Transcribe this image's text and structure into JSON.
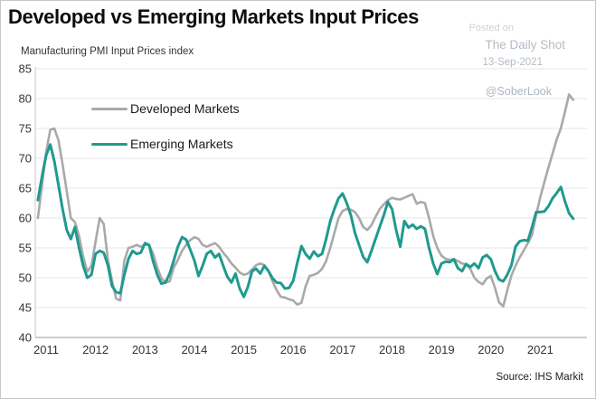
{
  "page": {
    "title": "Developed vs Emerging Markets Input Prices",
    "subtitle": "Manufacturing PMI Input Prices index",
    "source_note": "Source: IHS Markit"
  },
  "watermark": {
    "posted_on": "Posted on",
    "site_name": "The Daily Shot",
    "date": "13-Sep-2021",
    "handle": "@SoberLook"
  },
  "colors": {
    "developed_line": "#a9a9a9",
    "emerging_line": "#1f9a8e",
    "gridline": "#e4e4e4",
    "axis": "#9a9a9a",
    "tick_text": "#333333"
  },
  "chart_data": {
    "type": "line",
    "title": "Developed vs Emerging Markets Input Prices",
    "subtitle": "Manufacturing PMI Input Prices index",
    "x_start": "2010-11",
    "x_frequency": "monthly",
    "x_tick_labels": [
      "2011",
      "2012",
      "2013",
      "2014",
      "2015",
      "2016",
      "2017",
      "2018",
      "2019",
      "2020",
      "2021"
    ],
    "y_ticks": [
      85,
      80,
      75,
      70,
      65,
      60,
      55,
      50,
      45,
      40
    ],
    "ylim": [
      40,
      85
    ],
    "grid": "horizontal",
    "legend_position": "top-left-inside",
    "series": [
      {
        "name": "Developed Markets",
        "color": "#a9a9a9",
        "values": [
          60.0,
          65.5,
          71.0,
          74.8,
          75.0,
          73.0,
          69.0,
          64.5,
          60.0,
          59.3,
          57.0,
          53.5,
          51.0,
          52.0,
          56.0,
          60.0,
          59.0,
          53.0,
          49.5,
          46.5,
          46.2,
          52.9,
          55.0,
          55.2,
          55.5,
          55.2,
          55.5,
          55.5,
          54.0,
          51.7,
          49.9,
          49.2,
          49.4,
          51.7,
          53.0,
          54.5,
          55.5,
          56.3,
          56.8,
          56.5,
          55.5,
          55.2,
          55.5,
          55.8,
          55.2,
          54.2,
          53.4,
          52.4,
          51.7,
          50.9,
          50.5,
          50.7,
          51.4,
          52.1,
          52.4,
          52.1,
          51.1,
          49.4,
          47.9,
          46.8,
          46.7,
          46.4,
          46.2,
          45.5,
          45.8,
          48.5,
          50.3,
          50.5,
          50.8,
          51.5,
          52.8,
          55.0,
          57.5,
          60.0,
          61.2,
          61.5,
          61.4,
          61.0,
          60.0,
          58.5,
          58.0,
          58.8,
          60.2,
          61.5,
          62.3,
          63.0,
          63.4,
          63.2,
          63.1,
          63.4,
          63.7,
          64.0,
          62.4,
          62.7,
          62.5,
          60.0,
          57.0,
          55.0,
          53.7,
          53.2,
          53.0,
          53.1,
          52.8,
          52.4,
          52.2,
          51.5,
          50.0,
          49.3,
          48.9,
          49.9,
          50.3,
          48.3,
          45.9,
          45.2,
          47.9,
          50.4,
          52.0,
          53.4,
          54.6,
          55.8,
          57.2,
          60.5,
          63.5,
          66.0,
          68.5,
          70.8,
          73.2,
          75.0,
          77.8,
          80.7,
          79.8
        ]
      },
      {
        "name": "Emerging Markets",
        "color": "#1f9a8e",
        "values": [
          63.0,
          67.0,
          70.5,
          72.3,
          69.5,
          65.5,
          61.5,
          58.0,
          56.5,
          58.5,
          55.0,
          52.0,
          50.0,
          50.5,
          54.0,
          54.5,
          54.2,
          52.1,
          48.6,
          47.6,
          47.4,
          50.5,
          53.2,
          54.5,
          54.0,
          54.2,
          55.8,
          55.5,
          52.7,
          50.5,
          49.0,
          49.2,
          50.7,
          52.9,
          55.2,
          56.8,
          56.4,
          54.7,
          52.9,
          50.3,
          52.0,
          54.0,
          54.5,
          53.4,
          54.0,
          52.0,
          50.2,
          49.2,
          50.7,
          48.2,
          46.8,
          48.5,
          51.1,
          51.5,
          50.7,
          52.0,
          51.1,
          49.9,
          49.2,
          49.1,
          48.2,
          48.3,
          49.5,
          52.5,
          55.3,
          54.0,
          53.2,
          54.4,
          53.6,
          54.0,
          56.5,
          59.5,
          61.5,
          63.3,
          64.1,
          62.5,
          60.5,
          57.5,
          55.5,
          53.5,
          52.6,
          54.5,
          56.5,
          58.5,
          60.5,
          62.7,
          61.5,
          58.0,
          55.2,
          59.5,
          58.4,
          58.9,
          58.2,
          58.6,
          58.2,
          55.0,
          52.4,
          50.6,
          52.4,
          52.7,
          52.6,
          53.1,
          51.6,
          51.1,
          52.3,
          51.8,
          52.4,
          51.6,
          53.4,
          53.8,
          53.1,
          51.1,
          49.7,
          49.4,
          50.5,
          52.1,
          55.2,
          56.1,
          56.3,
          56.2,
          58.5,
          61.0,
          61.0,
          61.1,
          62.0,
          63.3,
          64.2,
          65.2,
          62.8,
          60.8,
          59.9
        ]
      }
    ]
  }
}
